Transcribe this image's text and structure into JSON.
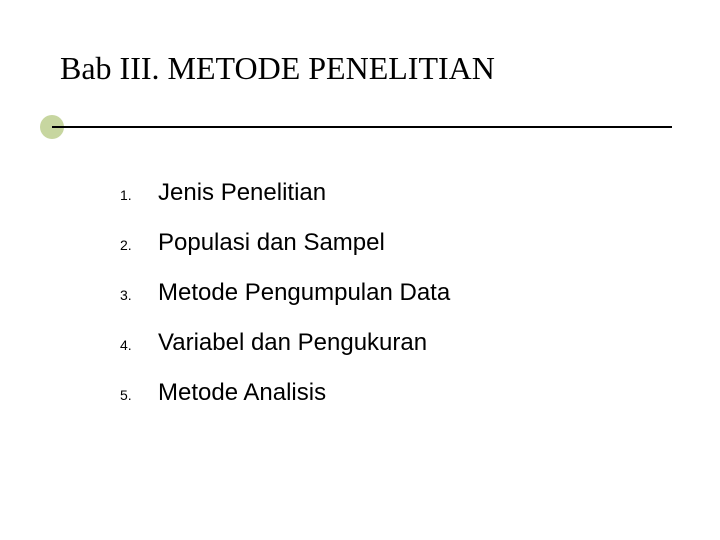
{
  "title": "Bab III. METODE PENELITIAN",
  "accent_circle_color": "#c7d6a0",
  "line_color": "#000000",
  "background_color": "#ffffff",
  "title_fontsize": 32,
  "title_font": "Times New Roman",
  "item_fontsize": 24,
  "number_fontsize": 14,
  "text_color": "#000000",
  "items": [
    {
      "num": "1.",
      "text": "Jenis Penelitian"
    },
    {
      "num": "2.",
      "text": "Populasi dan Sampel"
    },
    {
      "num": "3.",
      "text": "Metode Pengumpulan Data"
    },
    {
      "num": "4.",
      "text": "Variabel dan Pengukuran"
    },
    {
      "num": "5.",
      "text": "Metode Analisis"
    }
  ]
}
